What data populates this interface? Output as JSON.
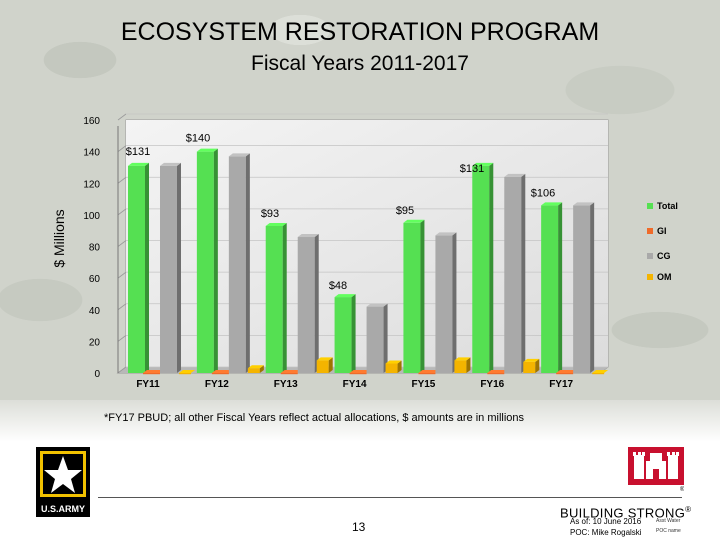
{
  "header": {
    "title": "ECOSYSTEM RESTORATION PROGRAM",
    "subtitle": "Fiscal Years 2011-2017"
  },
  "chart_data": {
    "type": "bar",
    "categories": [
      "FY11",
      "FY12",
      "FY13",
      "FY14",
      "FY15",
      "FY16",
      "FY17"
    ],
    "series": [
      {
        "name": "Total",
        "color": "#55e052",
        "values": [
          131,
          140,
          93,
          48,
          95,
          131,
          106
        ]
      },
      {
        "name": "GI",
        "color": "#ef6b2a",
        "values": [
          0,
          0,
          0,
          0,
          0,
          0,
          0
        ]
      },
      {
        "name": "CG",
        "color": "#a9a9a9",
        "values": [
          131,
          137,
          86,
          42,
          87,
          124,
          106
        ]
      },
      {
        "name": "OM",
        "color": "#f4b400",
        "values": [
          0,
          3,
          8,
          6,
          8,
          7,
          0
        ]
      }
    ],
    "data_labels": [
      "$131",
      "$140",
      "$93",
      "$48",
      "$95",
      "$131",
      "$106"
    ],
    "ylabel": "$ Millions",
    "yticks": [
      0,
      20,
      40,
      60,
      80,
      100,
      120,
      140,
      160
    ],
    "ylim": [
      0,
      160
    ],
    "legend_position": "right"
  },
  "footnote": "*FY17 PBUD; all other Fiscal Years reflect actual allocations, $ amounts are in millions",
  "footer": {
    "page_number": "13",
    "brand": "BUILDING STRONG",
    "brand_mark": "®",
    "as_of": "As of: 10 June 2016",
    "poc": "POC: Mike Rogalski",
    "tiny_label_1": "Asst Water",
    "tiny_label_2": "POC name",
    "army_wordmark": "U.S.ARMY",
    "logo_mark": "®"
  }
}
